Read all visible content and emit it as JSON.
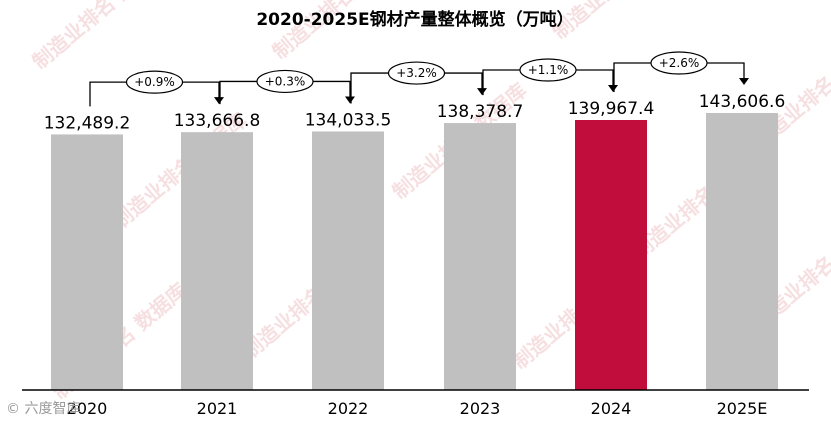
{
  "chart_data": {
    "type": "bar",
    "title": "2020-2025E钢材产量整体概览（万吨）",
    "categories": [
      "2020",
      "2021",
      "2022",
      "2023",
      "2024",
      "2025E"
    ],
    "values": [
      132489.2,
      133666.8,
      134033.5,
      138378.7,
      139967.4,
      143606.6
    ],
    "value_labels": [
      "132,489.2",
      "133,666.8",
      "134,033.5",
      "138,378.7",
      "139,967.4",
      "143,606.6"
    ],
    "growth_labels": [
      "+0.9%",
      "+0.3%",
      "+3.2%",
      "+1.1%",
      "+2.6%"
    ],
    "highlight_category": "2024",
    "colors": {
      "bar": "#c0c0c0",
      "highlight": "#c00d3c",
      "axis": "#000000"
    },
    "ylim": [
      0,
      150000
    ],
    "grid": false,
    "legend": "none"
  },
  "watermark": "制造业排名 数据库",
  "footer_logo": "© 六度智库"
}
